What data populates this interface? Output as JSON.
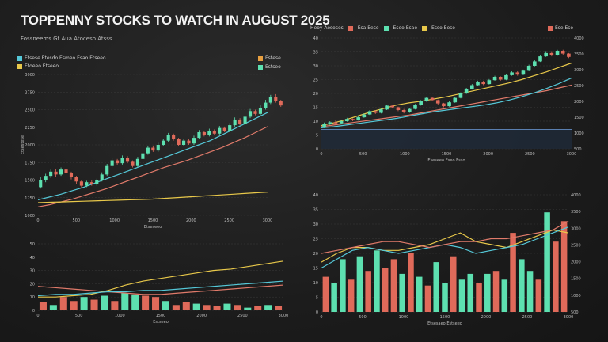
{
  "header": {
    "title": "TOPPENNY STOCKS TO WATCH IN AUGUST 2025",
    "subtitle": "Fossneems Gt Aua Atoceso Atsss"
  },
  "colors": {
    "up": "#5de0b0",
    "down": "#e06a5a",
    "yellow": "#e8c84a",
    "teal": "#55c8d8",
    "salmon": "#e07a6a",
    "grid": "#3a3a3a",
    "axis_text": "#bdbdbd"
  },
  "chart_data": [
    {
      "id": "top-left",
      "type": "line",
      "legend": [
        {
          "label": "Etsese Etesdo Esmeo Esao Etseeo",
          "color": "#55c8d8"
        },
        {
          "label": "Etoeeo Etseeo",
          "color": "#e8c84a"
        }
      ],
      "legend_right": [
        {
          "label": "Estese",
          "color": "#e8a040"
        },
        {
          "label": "Estseo",
          "color": "#5de0b0"
        }
      ],
      "ylabel": "Etsestese",
      "xlabel": "Etseseeo",
      "y_ticks": [
        "3000",
        "2750",
        "2500",
        "2250",
        "2000",
        "1750",
        "1500",
        "1250",
        "1000"
      ],
      "x_ticks": [
        "0",
        "500",
        "1000",
        "1500",
        "2000",
        "2500",
        "3000"
      ],
      "ylim": [
        1000,
        3000
      ],
      "candles": [
        [
          1400,
          1500,
          1380,
          1540
        ],
        [
          1500,
          1560,
          1470,
          1590
        ],
        [
          1560,
          1620,
          1530,
          1650
        ],
        [
          1620,
          1580,
          1550,
          1660
        ],
        [
          1580,
          1650,
          1560,
          1680
        ],
        [
          1650,
          1600,
          1580,
          1670
        ],
        [
          1600,
          1540,
          1510,
          1620
        ],
        [
          1540,
          1480,
          1450,
          1560
        ],
        [
          1480,
          1420,
          1390,
          1500
        ],
        [
          1420,
          1470,
          1400,
          1490
        ],
        [
          1470,
          1440,
          1420,
          1500
        ],
        [
          1440,
          1500,
          1420,
          1520
        ],
        [
          1500,
          1580,
          1480,
          1610
        ],
        [
          1580,
          1700,
          1560,
          1730
        ],
        [
          1700,
          1780,
          1680,
          1810
        ],
        [
          1780,
          1740,
          1710,
          1800
        ],
        [
          1740,
          1820,
          1720,
          1850
        ],
        [
          1820,
          1760,
          1740,
          1840
        ],
        [
          1760,
          1700,
          1680,
          1780
        ],
        [
          1700,
          1800,
          1680,
          1830
        ],
        [
          1800,
          1880,
          1780,
          1910
        ],
        [
          1880,
          1960,
          1860,
          1990
        ],
        [
          1960,
          1920,
          1900,
          1990
        ],
        [
          1920,
          2000,
          1900,
          2030
        ],
        [
          2000,
          2060,
          1980,
          2090
        ],
        [
          2060,
          2140,
          2040,
          2170
        ],
        [
          2140,
          2080,
          2060,
          2160
        ],
        [
          2080,
          2000,
          1980,
          2100
        ],
        [
          2000,
          2060,
          1980,
          2090
        ],
        [
          2060,
          2020,
          2000,
          2080
        ],
        [
          2020,
          2100,
          2000,
          2130
        ],
        [
          2100,
          2180,
          2080,
          2210
        ],
        [
          2180,
          2140,
          2120,
          2200
        ],
        [
          2140,
          2200,
          2120,
          2230
        ],
        [
          2200,
          2160,
          2140,
          2220
        ],
        [
          2160,
          2240,
          2140,
          2270
        ],
        [
          2240,
          2200,
          2180,
          2260
        ],
        [
          2200,
          2280,
          2180,
          2310
        ],
        [
          2280,
          2360,
          2260,
          2390
        ],
        [
          2360,
          2300,
          2280,
          2380
        ],
        [
          2300,
          2400,
          2280,
          2430
        ],
        [
          2400,
          2480,
          2380,
          2510
        ],
        [
          2480,
          2440,
          2420,
          2500
        ],
        [
          2440,
          2520,
          2420,
          2560
        ],
        [
          2520,
          2600,
          2500,
          2640
        ],
        [
          2600,
          2680,
          2580,
          2710
        ],
        [
          2680,
          2620,
          2600,
          2720
        ],
        [
          2620,
          2560,
          2540,
          2640
        ]
      ],
      "series": [
        {
          "name": "teal",
          "color": "#55c8d8",
          "values": [
            1220,
            1260,
            1300,
            1350,
            1400,
            1460,
            1520,
            1580,
            1640,
            1700,
            1760,
            1820,
            1880,
            1940,
            2000,
            2060,
            2140,
            2220,
            2300,
            2380,
            2460
          ]
        },
        {
          "name": "salmon",
          "color": "#e07a6a",
          "values": [
            1120,
            1150,
            1190,
            1230,
            1280,
            1330,
            1380,
            1440,
            1500,
            1560,
            1620,
            1680,
            1730,
            1780,
            1840,
            1900,
            1960,
            2030,
            2100,
            2180,
            2260
          ]
        },
        {
          "name": "yellow",
          "color": "#e8c84a",
          "values": [
            1180,
            1185,
            1190,
            1195,
            1200,
            1205,
            1210,
            1215,
            1220,
            1225,
            1230,
            1240,
            1250,
            1260,
            1270,
            1280,
            1290,
            1300,
            1310,
            1320,
            1330
          ]
        }
      ]
    },
    {
      "id": "top-right",
      "type": "line",
      "legend": [
        {
          "label": "Heoy Aesoses",
          "color": "#cfcfcf"
        },
        {
          "label": "Esa Eeso",
          "color": "#e06a5a"
        },
        {
          "label": "Eseo Esae",
          "color": "#5de0b0"
        },
        {
          "label": "Esso Eeso",
          "color": "#e8c84a"
        },
        {
          "label": "Ese Eso",
          "color": "#e06a5a"
        }
      ],
      "y_ticks_left": [
        "40",
        "35",
        "30",
        "25",
        "20",
        "15",
        "10",
        "5",
        "0"
      ],
      "y_ticks_right": [
        "4000",
        "3500",
        "3000",
        "2500",
        "2000",
        "1500",
        "1000",
        "500"
      ],
      "x_ticks": [
        "0",
        "500",
        "1000",
        "1500",
        "2000",
        "2500",
        "3000"
      ],
      "xlabel": "Eseseeo Eseo Esso",
      "ylim": [
        0,
        40
      ],
      "candles": [
        [
          8,
          9,
          7.5,
          9.5
        ],
        [
          9,
          9.6,
          8.6,
          10
        ],
        [
          9.6,
          9.2,
          8.8,
          10.2
        ],
        [
          9.2,
          10,
          9,
          10.4
        ],
        [
          10,
          10.8,
          9.8,
          11.2
        ],
        [
          10.8,
          10.4,
          10,
          11
        ],
        [
          10.4,
          11.4,
          10.2,
          11.8
        ],
        [
          11.4,
          12.4,
          11.2,
          12.8
        ],
        [
          12.4,
          13.6,
          12.2,
          14
        ],
        [
          13.6,
          13,
          12.6,
          14
        ],
        [
          13,
          14.2,
          12.8,
          14.6
        ],
        [
          14.2,
          15.6,
          14,
          16
        ],
        [
          15.6,
          15,
          14.6,
          16
        ],
        [
          15,
          14,
          13.6,
          15.2
        ],
        [
          14,
          13.2,
          12.8,
          14.4
        ],
        [
          13.2,
          14.4,
          13,
          14.8
        ],
        [
          14.4,
          15.8,
          14.2,
          16.2
        ],
        [
          15.8,
          17.2,
          15.6,
          17.6
        ],
        [
          17.2,
          18.4,
          17,
          18.8
        ],
        [
          18.4,
          17.6,
          17.2,
          18.8
        ],
        [
          17.6,
          16.4,
          16,
          17.8
        ],
        [
          16.4,
          15.4,
          15,
          16.6
        ],
        [
          15.4,
          16.8,
          15.2,
          17.2
        ],
        [
          16.8,
          18.4,
          16.6,
          18.8
        ],
        [
          18.4,
          20,
          18.2,
          20.4
        ],
        [
          20,
          21.6,
          19.8,
          22
        ],
        [
          21.6,
          23,
          21.4,
          23.4
        ],
        [
          23,
          24.2,
          22.8,
          24.6
        ],
        [
          24.2,
          23.4,
          23,
          24.6
        ],
        [
          23.4,
          24.8,
          23.2,
          25.2
        ],
        [
          24.8,
          26,
          24.6,
          26.4
        ],
        [
          26,
          25,
          24.6,
          26.2
        ],
        [
          25,
          26.6,
          24.8,
          27
        ],
        [
          26.6,
          27.6,
          26.4,
          28
        ],
        [
          27.6,
          26.8,
          26.4,
          28
        ],
        [
          26.8,
          28.2,
          26.6,
          28.6
        ],
        [
          28.2,
          30,
          28,
          30.4
        ],
        [
          30,
          31.6,
          29.8,
          32
        ],
        [
          31.6,
          33.4,
          31.4,
          33.8
        ],
        [
          33.4,
          34.6,
          33.2,
          35
        ],
        [
          34.6,
          33.8,
          33.4,
          35
        ],
        [
          33.8,
          35.4,
          33.6,
          35.8
        ],
        [
          35.4,
          34.4,
          34,
          35.8
        ],
        [
          34.4,
          33.2,
          32.8,
          34.6
        ]
      ],
      "series": [
        {
          "name": "salmon",
          "color": "#e07a6a",
          "values": [
            8,
            8.6,
            9.2,
            9.8,
            10.4,
            11,
            11.6,
            12.2,
            13,
            13.8,
            14.6,
            15.4,
            16.2,
            17,
            17.8,
            18.6,
            19.4,
            20.2,
            21,
            22,
            23
          ]
        },
        {
          "name": "yellow",
          "color": "#e8c84a",
          "values": [
            8.4,
            9.4,
            10.6,
            12,
            13.4,
            14.6,
            15.8,
            16.6,
            17.2,
            18,
            18.8,
            19.8,
            20.8,
            21.8,
            22.8,
            23.8,
            25,
            26.4,
            27.8,
            29.4,
            31
          ]
        },
        {
          "name": "teal",
          "color": "#55c8d8",
          "values": [
            7.6,
            8,
            8.6,
            9.2,
            9.8,
            10.4,
            11,
            11.8,
            12.6,
            13.4,
            14,
            14.6,
            15.2,
            15.8,
            16.6,
            17.6,
            18.8,
            20.2,
            21.8,
            23.6,
            25.6
          ]
        }
      ],
      "baseline": 7
    },
    {
      "id": "bottom-left",
      "type": "bar",
      "y_ticks": [
        "50",
        "40",
        "30",
        "20",
        "10",
        "0"
      ],
      "x_ticks": [
        "0",
        "500",
        "1000",
        "1500",
        "2000",
        "2500",
        "3000"
      ],
      "xlabel": "Estseeo",
      "ylim": [
        0,
        50
      ],
      "bars": [
        {
          "v": 6,
          "c": "#e06a5a"
        },
        {
          "v": 4,
          "c": "#5de0b0"
        },
        {
          "v": 10,
          "c": "#e06a5a"
        },
        {
          "v": 7,
          "c": "#e06a5a"
        },
        {
          "v": 10,
          "c": "#5de0b0"
        },
        {
          "v": 8,
          "c": "#e06a5a"
        },
        {
          "v": 11,
          "c": "#5de0b0"
        },
        {
          "v": 7,
          "c": "#e06a5a"
        },
        {
          "v": 13,
          "c": "#5de0b0"
        },
        {
          "v": 12,
          "c": "#5de0b0"
        },
        {
          "v": 11,
          "c": "#e06a5a"
        },
        {
          "v": 10,
          "c": "#e06a5a"
        },
        {
          "v": 7,
          "c": "#5de0b0"
        },
        {
          "v": 4,
          "c": "#e06a5a"
        },
        {
          "v": 6,
          "c": "#e06a5a"
        },
        {
          "v": 5,
          "c": "#5de0b0"
        },
        {
          "v": 4,
          "c": "#e06a5a"
        },
        {
          "v": 3,
          "c": "#e06a5a"
        },
        {
          "v": 5,
          "c": "#5de0b0"
        },
        {
          "v": 4,
          "c": "#e06a5a"
        },
        {
          "v": 2,
          "c": "#5de0b0"
        },
        {
          "v": 3,
          "c": "#e06a5a"
        },
        {
          "v": 4,
          "c": "#5de0b0"
        },
        {
          "v": 3,
          "c": "#e06a5a"
        }
      ],
      "series": [
        {
          "name": "salmon",
          "color": "#e07a6a",
          "values": [
            18,
            17,
            16,
            15,
            14,
            13,
            12,
            12,
            13,
            14,
            15,
            16,
            17,
            18,
            19
          ]
        },
        {
          "name": "yellow",
          "color": "#e8c84a",
          "values": [
            10,
            10,
            11,
            12,
            15,
            19,
            22,
            24,
            26,
            28,
            30,
            31,
            33,
            35,
            37
          ]
        },
        {
          "name": "teal",
          "color": "#55c8d8",
          "values": [
            11,
            12,
            12,
            13,
            14,
            14,
            15,
            15,
            16,
            17,
            18,
            19,
            20,
            21,
            22
          ]
        }
      ]
    },
    {
      "id": "bottom-right",
      "type": "bar",
      "y_ticks_left": [
        "40",
        "35",
        "30",
        "25",
        "20",
        "15",
        "10",
        "5",
        "0"
      ],
      "y_ticks_right": [
        "4000",
        "3500",
        "3000",
        "2500",
        "2000",
        "1500",
        "1000",
        "500"
      ],
      "x_ticks": [
        "0",
        "500",
        "1000",
        "1500",
        "2000",
        "2500",
        "3000"
      ],
      "xlabel": "Etsesaeo Estseeo",
      "ylim": [
        0,
        40
      ],
      "bars": [
        {
          "v": 12,
          "c": "#e06a5a"
        },
        {
          "v": 10,
          "c": "#5de0b0"
        },
        {
          "v": 18,
          "c": "#5de0b0"
        },
        {
          "v": 11,
          "c": "#e06a5a"
        },
        {
          "v": 19,
          "c": "#5de0b0"
        },
        {
          "v": 14,
          "c": "#e06a5a"
        },
        {
          "v": 21,
          "c": "#5de0b0"
        },
        {
          "v": 15,
          "c": "#e06a5a"
        },
        {
          "v": 18,
          "c": "#e06a5a"
        },
        {
          "v": 13,
          "c": "#5de0b0"
        },
        {
          "v": 20,
          "c": "#e06a5a"
        },
        {
          "v": 12,
          "c": "#5de0b0"
        },
        {
          "v": 9,
          "c": "#e06a5a"
        },
        {
          "v": 17,
          "c": "#5de0b0"
        },
        {
          "v": 10,
          "c": "#5de0b0"
        },
        {
          "v": 19,
          "c": "#e06a5a"
        },
        {
          "v": 11,
          "c": "#5de0b0"
        },
        {
          "v": 13,
          "c": "#5de0b0"
        },
        {
          "v": 10,
          "c": "#e06a5a"
        },
        {
          "v": 13,
          "c": "#5de0b0"
        },
        {
          "v": 14,
          "c": "#e06a5a"
        },
        {
          "v": 11,
          "c": "#5de0b0"
        },
        {
          "v": 27,
          "c": "#e06a5a"
        },
        {
          "v": 18,
          "c": "#5de0b0"
        },
        {
          "v": 14,
          "c": "#5de0b0"
        },
        {
          "v": 11,
          "c": "#e06a5a"
        },
        {
          "v": 34,
          "c": "#5de0b0"
        },
        {
          "v": 24,
          "c": "#e06a5a"
        },
        {
          "v": 31,
          "c": "#e06a5a"
        }
      ],
      "series": [
        {
          "name": "yellow",
          "color": "#e8c84a",
          "values": [
            17,
            20,
            22,
            22,
            21,
            21,
            22,
            23,
            25,
            27,
            24,
            23,
            22,
            24,
            26,
            28,
            27
          ]
        },
        {
          "name": "teal",
          "color": "#55c8d8",
          "values": [
            15,
            18,
            21,
            22,
            21,
            20,
            21,
            22,
            23,
            22,
            20,
            21,
            22,
            23,
            25,
            27,
            29
          ]
        },
        {
          "name": "salmon",
          "color": "#e07a6a",
          "values": [
            20,
            21,
            22,
            23,
            24,
            24,
            23,
            22,
            23,
            24,
            24,
            25,
            25,
            26,
            27,
            28,
            31
          ]
        }
      ]
    }
  ]
}
